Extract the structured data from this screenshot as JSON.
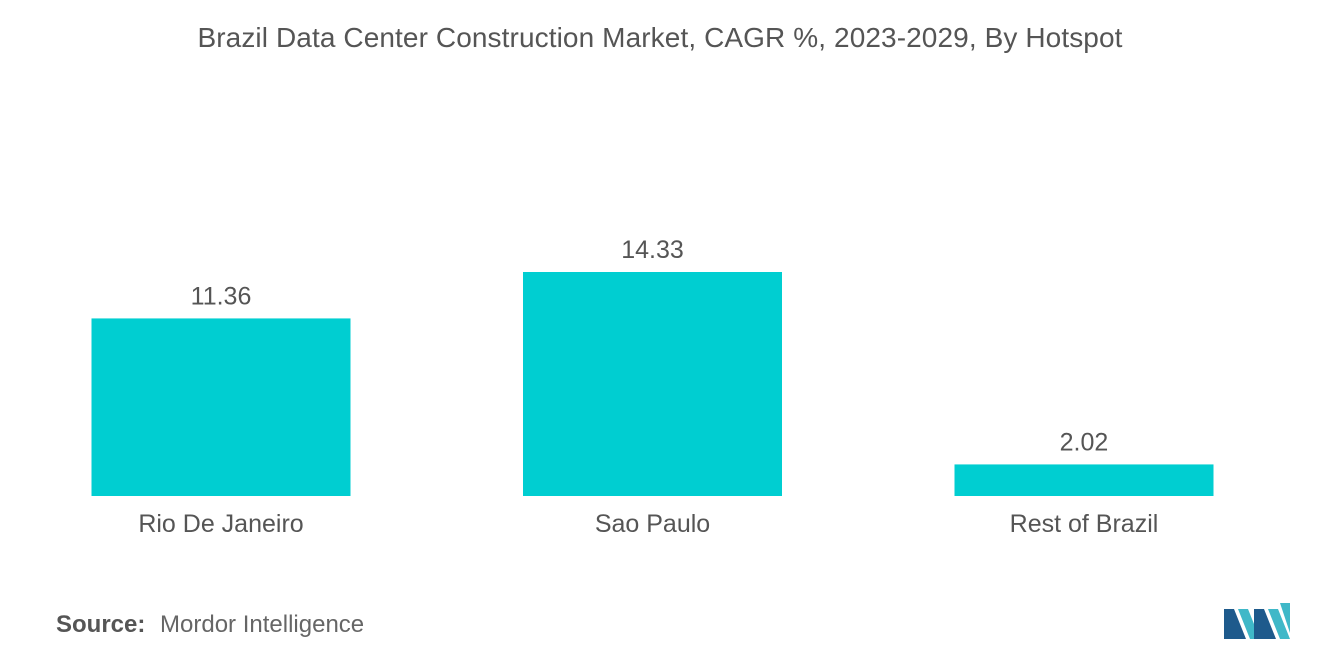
{
  "chart_data": {
    "type": "bar",
    "title": "Brazil Data Center Construction Market, CAGR %, 2023-2029, By Hotspot",
    "categories": [
      "Rio De Janeiro",
      "Sao Paulo",
      "Rest of Brazil"
    ],
    "values": [
      11.36,
      14.33,
      2.02
    ],
    "value_labels": [
      "11.36",
      "14.33",
      "2.02"
    ],
    "xlabel": "",
    "ylabel": "",
    "ylim": [
      0,
      14.33
    ],
    "grid": false,
    "legend": "none",
    "bar_color": "#00CED1",
    "text_color": "#555555"
  },
  "footer": {
    "source_label": "Source:",
    "source_value": "Mordor Intelligence"
  },
  "logo": {
    "icon": "mordor-intelligence-logo-icon",
    "color_dark": "#1E5A8C",
    "color_light": "#3FB8C8"
  }
}
